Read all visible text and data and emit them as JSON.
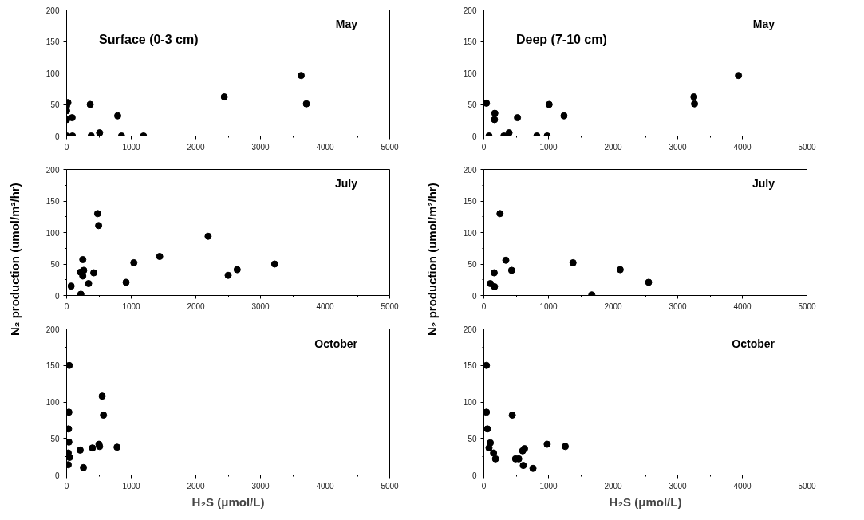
{
  "chart_data": [
    {
      "type": "scatter",
      "title": "May",
      "annotations": [
        "Surface (0-3 cm)"
      ],
      "xlim": [
        0,
        5000
      ],
      "xticks": [
        0,
        1000,
        2000,
        3000,
        4000,
        5000
      ],
      "ylim": [
        0,
        200
      ],
      "yticks": [
        0,
        50,
        100,
        150,
        200
      ],
      "grid": false,
      "marker": "circle",
      "series": [
        {
          "color": "#000000",
          "x": [
            0,
            0,
            0,
            0,
            20,
            85,
            90,
            365,
            380,
            510,
            790,
            850,
            1190,
            2440,
            3630,
            3710
          ],
          "values": [
            0,
            26,
            40,
            48,
            53,
            29,
            0,
            50,
            0,
            5,
            32,
            0,
            0,
            62,
            96,
            51
          ]
        }
      ]
    },
    {
      "type": "scatter",
      "title": "May",
      "annotations": [
        "Deep (7-10 cm)"
      ],
      "xlim": [
        0,
        5000
      ],
      "xticks": [
        0,
        1000,
        2000,
        3000,
        4000,
        5000
      ],
      "ylim": [
        0,
        200
      ],
      "yticks": [
        0,
        50,
        100,
        150,
        200
      ],
      "grid": false,
      "marker": "circle",
      "series": [
        {
          "color": "#000000",
          "x": [
            40,
            80,
            170,
            165,
            310,
            390,
            520,
            820,
            980,
            1010,
            1240,
            3250,
            3260,
            3940
          ],
          "values": [
            52,
            0,
            36,
            26,
            0,
            5,
            29,
            0,
            0,
            50,
            32,
            62,
            51,
            96
          ]
        }
      ]
    },
    {
      "type": "scatter",
      "title": "July",
      "ylabel": "N₂ production (umol/m²/hr)",
      "xlim": [
        0,
        5000
      ],
      "xticks": [
        0,
        1000,
        2000,
        3000,
        4000,
        5000
      ],
      "ylim": [
        0,
        200
      ],
      "yticks": [
        0,
        50,
        100,
        150,
        200
      ],
      "grid": false,
      "marker": "circle",
      "series": [
        {
          "color": "#000000",
          "x": [
            70,
            220,
            215,
            250,
            265,
            250,
            340,
            420,
            480,
            495,
            920,
            1040,
            1440,
            2190,
            2500,
            2640,
            3220
          ],
          "values": [
            15,
            2,
            37,
            57,
            40,
            31,
            19,
            36,
            130,
            111,
            21,
            52,
            62,
            94,
            32,
            41,
            50
          ]
        }
      ]
    },
    {
      "type": "scatter",
      "title": "July",
      "ylabel": "N₂ production (umol/m²/hr)",
      "xlim": [
        0,
        5000
      ],
      "xticks": [
        0,
        1000,
        2000,
        3000,
        4000,
        5000
      ],
      "ylim": [
        0,
        200
      ],
      "yticks": [
        0,
        50,
        100,
        150,
        200
      ],
      "grid": false,
      "marker": "circle",
      "series": [
        {
          "color": "#000000",
          "x": [
            100,
            160,
            165,
            250,
            340,
            430,
            1380,
            1670,
            2110,
            2550
          ],
          "values": [
            19,
            36,
            14,
            130,
            56,
            40,
            52,
            1,
            41,
            21
          ]
        }
      ]
    },
    {
      "type": "scatter",
      "title": "October",
      "xlabel": "H₂S (μmol/L)",
      "xlim": [
        0,
        5000
      ],
      "xticks": [
        0,
        1000,
        2000,
        3000,
        4000,
        5000
      ],
      "ylim": [
        0,
        200
      ],
      "yticks": [
        0,
        50,
        100,
        150,
        200
      ],
      "grid": false,
      "marker": "circle",
      "series": [
        {
          "color": "#000000",
          "x": [
            40,
            35,
            30,
            35,
            25,
            45,
            25,
            210,
            260,
            400,
            500,
            510,
            550,
            570,
            780
          ],
          "values": [
            150,
            86,
            63,
            45,
            30,
            24,
            14,
            34,
            10,
            37,
            42,
            39,
            108,
            82,
            38
          ]
        }
      ]
    },
    {
      "type": "scatter",
      "title": "October",
      "xlabel": "H₂S (μmol/L)",
      "xlim": [
        0,
        5000
      ],
      "xticks": [
        0,
        1000,
        2000,
        3000,
        4000,
        5000
      ],
      "ylim": [
        0,
        200
      ],
      "yticks": [
        0,
        50,
        100,
        150,
        200
      ],
      "grid": false,
      "marker": "circle",
      "series": [
        {
          "color": "#000000",
          "x": [
            40,
            40,
            55,
            100,
            80,
            150,
            180,
            440,
            490,
            540,
            600,
            630,
            610,
            760,
            980,
            1260
          ],
          "values": [
            150,
            86,
            63,
            44,
            37,
            30,
            22,
            82,
            22,
            22,
            33,
            36,
            13,
            9,
            42,
            39
          ]
        }
      ]
    }
  ]
}
